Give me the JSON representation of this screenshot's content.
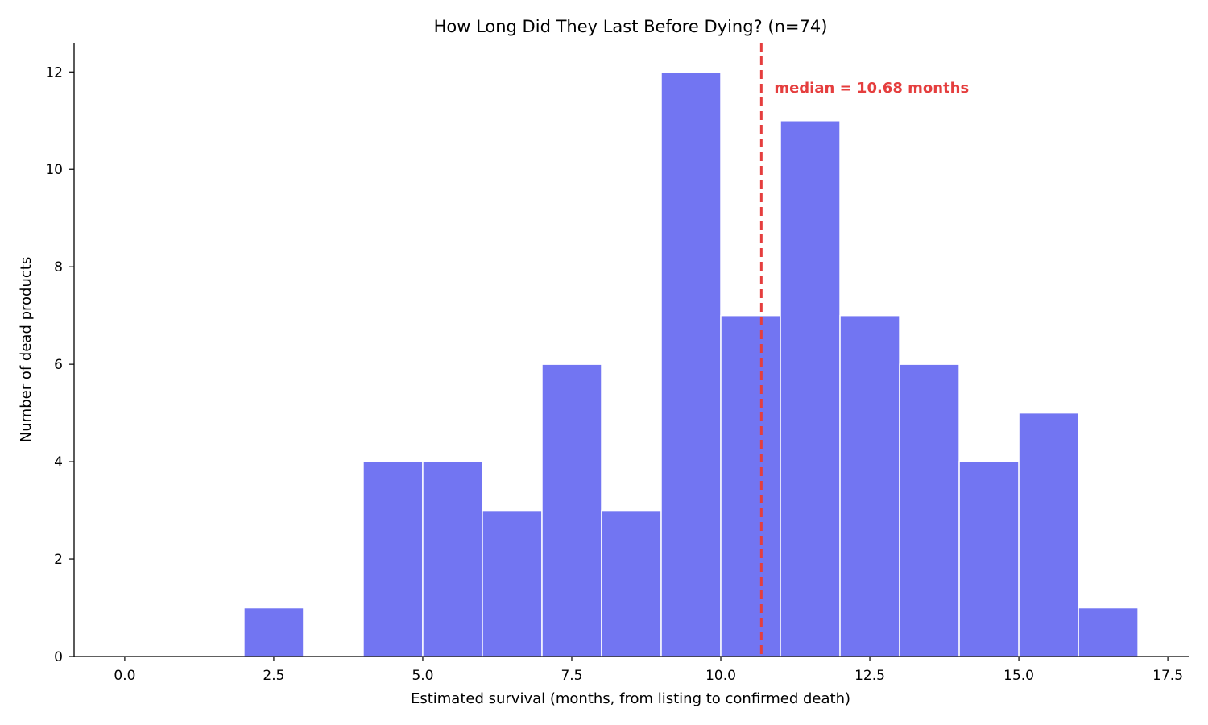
{
  "chart_data": {
    "type": "bar",
    "title": "How Long Did They Last Before Dying? (n=74)",
    "xlabel": "Estimated survival (months, from listing to confirmed death)",
    "ylabel": "Number of dead products",
    "xlim": [
      -0.85,
      17.85
    ],
    "ylim": [
      0,
      12.6
    ],
    "x_ticks": [
      0.0,
      2.5,
      5.0,
      7.5,
      10.0,
      12.5,
      15.0,
      17.5
    ],
    "x_tick_labels": [
      "0.0",
      "2.5",
      "5.0",
      "7.5",
      "10.0",
      "12.5",
      "15.0",
      "17.5"
    ],
    "y_ticks": [
      0,
      2,
      4,
      6,
      8,
      10,
      12
    ],
    "y_tick_labels": [
      "0",
      "2",
      "4",
      "6",
      "8",
      "10",
      "12"
    ],
    "bin_edges": [
      0,
      1,
      2,
      3,
      4,
      5,
      6,
      7,
      8,
      9,
      10,
      11,
      12,
      13,
      14,
      15,
      16,
      17
    ],
    "counts": [
      0,
      0,
      1,
      0,
      4,
      4,
      3,
      6,
      3,
      12,
      7,
      11,
      7,
      6,
      4,
      5,
      1
    ],
    "bar_color": "#7275f2",
    "bar_edge_color": "#ffffff",
    "median": {
      "value": 10.68,
      "label": "median = 10.68 months",
      "color": "#e53e3e"
    },
    "grid": false
  }
}
